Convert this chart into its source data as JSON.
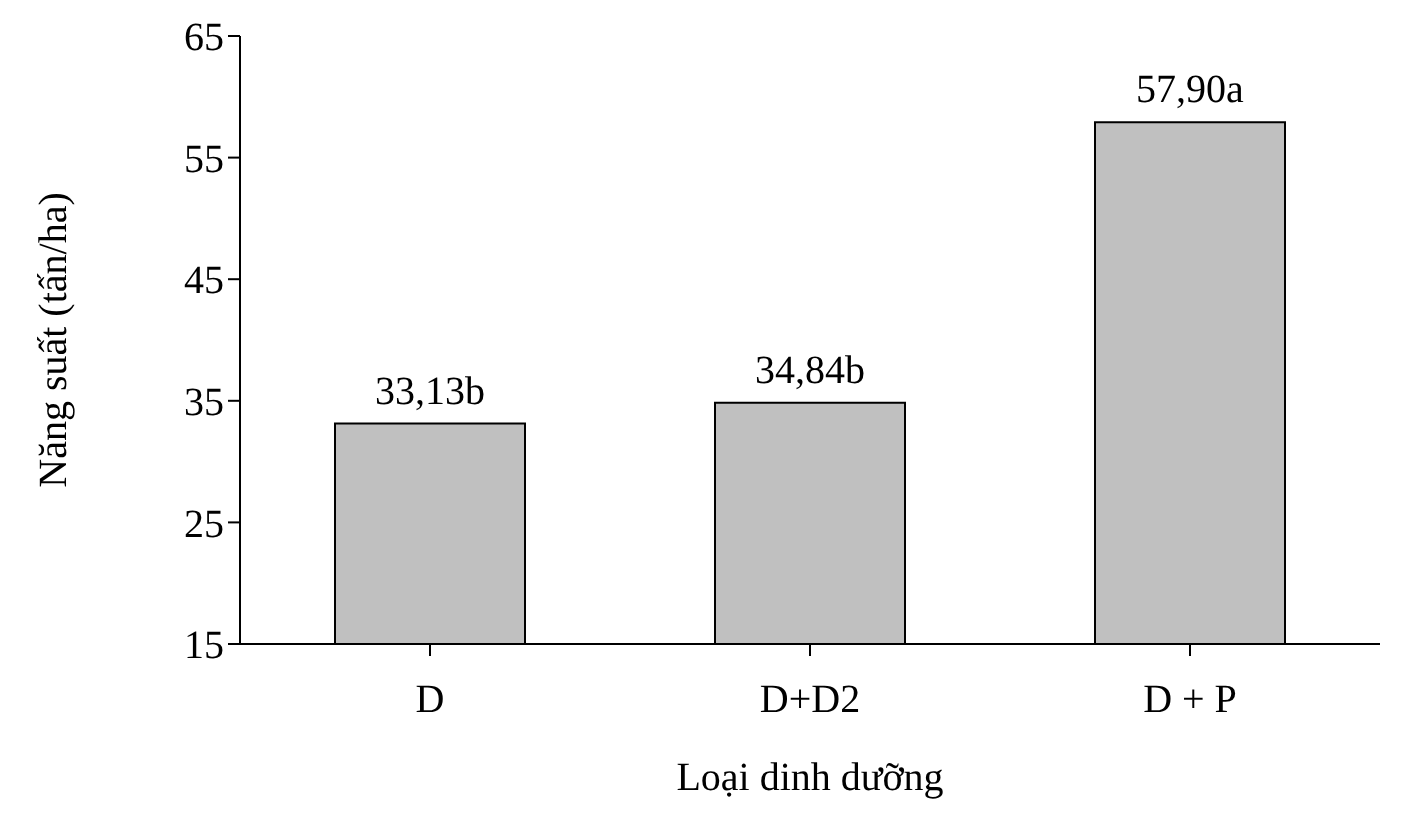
{
  "chart_data": {
    "type": "bar",
    "xlabel": "Loại dinh dưỡng",
    "ylabel": "Năng suất (tấn/ha)",
    "categories": [
      "D",
      "D+D2",
      "D + P"
    ],
    "values": [
      33.13,
      34.84,
      57.9
    ],
    "value_labels": [
      "33,13b",
      "34,84b",
      "57,90a"
    ],
    "color": "#c0c0c0",
    "ylim": [
      15,
      65
    ],
    "yticks": [
      15,
      25,
      35,
      45,
      55,
      65
    ],
    "grid": false,
    "legend": false
  }
}
